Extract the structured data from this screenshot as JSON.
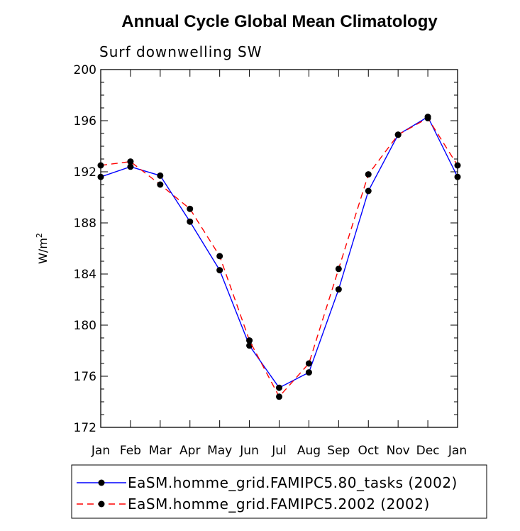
{
  "chart_data": {
    "type": "line",
    "title": "Annual Cycle Global Mean Climatology",
    "subtitle": "Surf downwelling SW",
    "xlabel": "",
    "ylabel": "W/m",
    "ylabel_superscript": "2",
    "ylim": [
      172,
      200
    ],
    "yticks": [
      "172",
      "176",
      "180",
      "184",
      "188",
      "192",
      "196",
      "200"
    ],
    "categories": [
      "Jan",
      "Feb",
      "Mar",
      "Apr",
      "May",
      "Jun",
      "Jul",
      "Aug",
      "Sep",
      "Oct",
      "Nov",
      "Dec",
      "Jan"
    ],
    "series": [
      {
        "name": "EaSM.homme_grid.FAMIPC5.80_tasks (2002)",
        "color": "#0000ff",
        "style": "solid",
        "marker": "filled-circle",
        "values": [
          191.6,
          192.4,
          191.7,
          188.1,
          184.3,
          178.4,
          175.1,
          176.3,
          182.8,
          190.5,
          194.9,
          196.3,
          191.6
        ]
      },
      {
        "name": "EaSM.homme_grid.FAMIPC5.2002 (2002)",
        "color": "#ff0000",
        "style": "dashed",
        "marker": "filled-circle",
        "values": [
          192.5,
          192.8,
          191.0,
          189.1,
          185.4,
          178.8,
          174.4,
          177.0,
          184.4,
          191.8,
          194.9,
          196.2,
          192.5
        ]
      }
    ],
    "legend_position": "bottom"
  }
}
